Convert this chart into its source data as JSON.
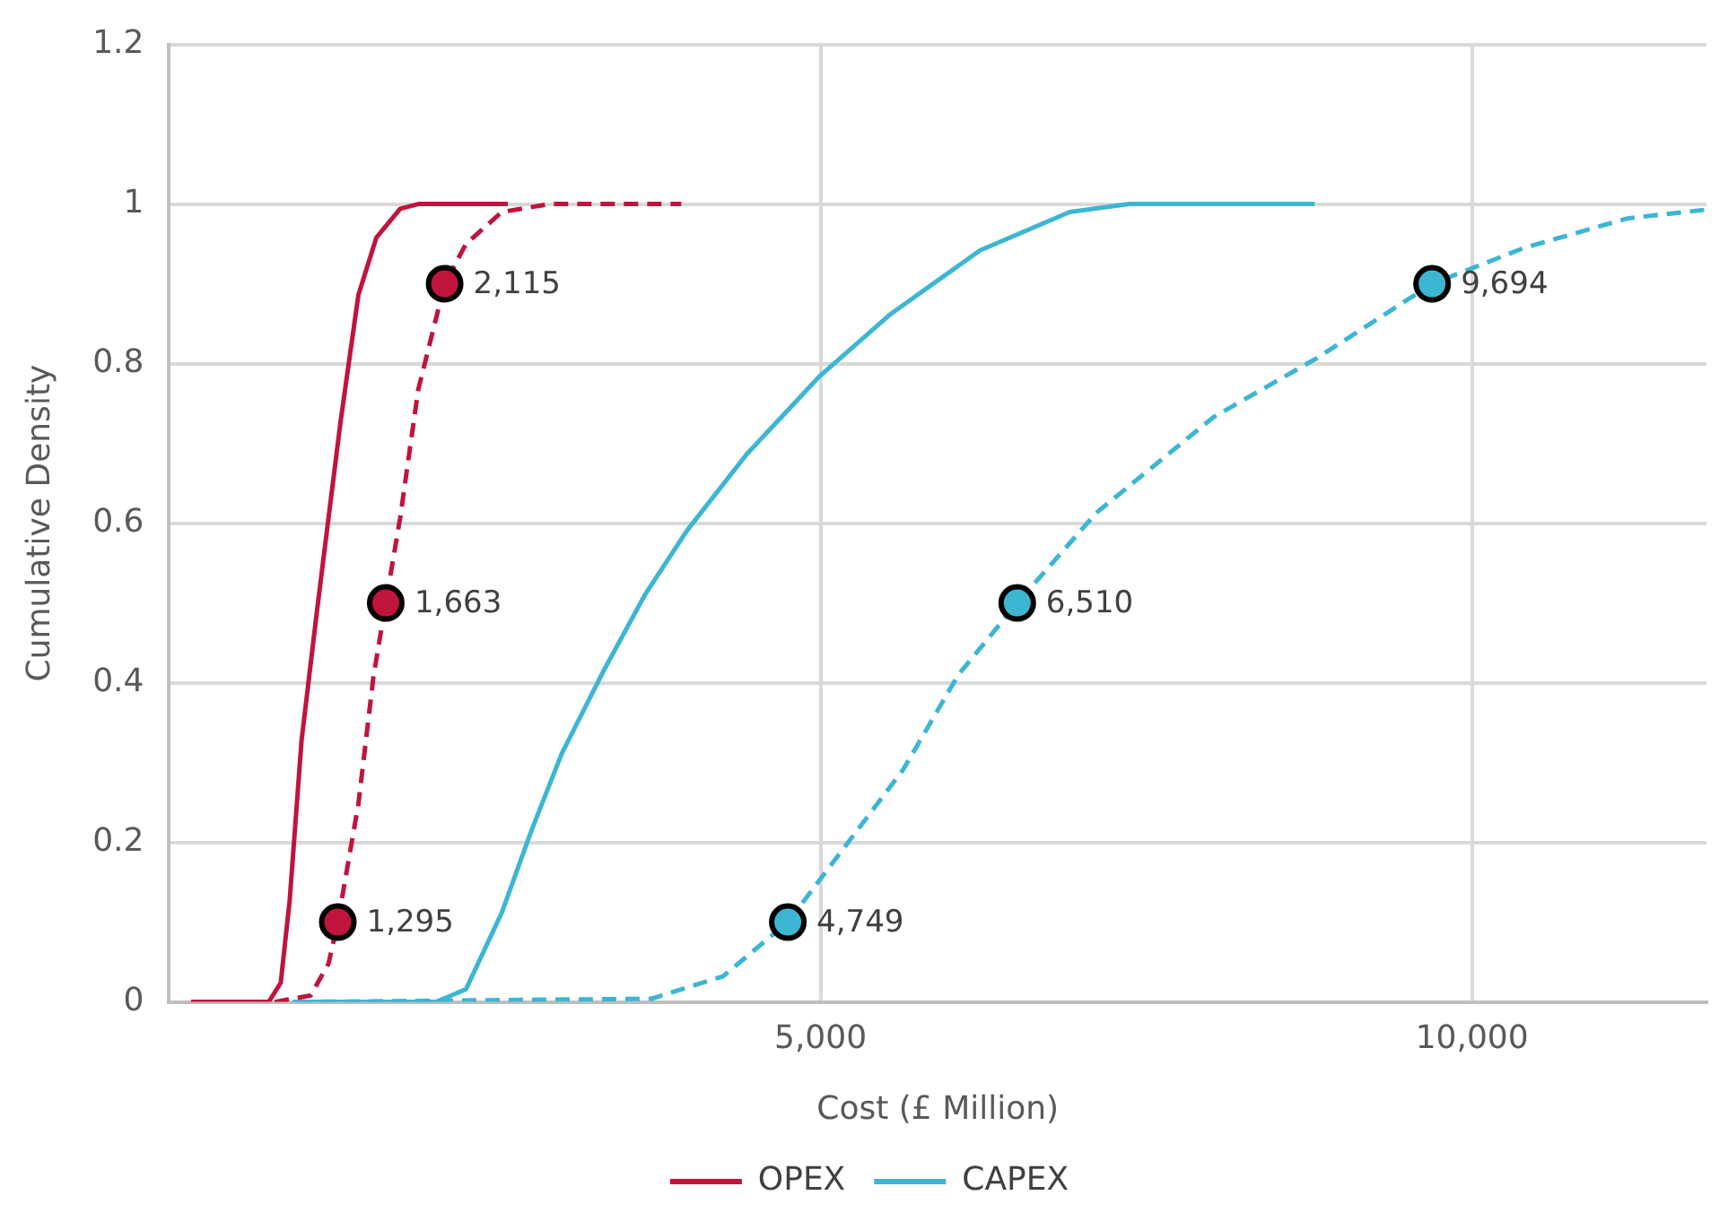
{
  "chart_data": {
    "type": "line",
    "xlabel": "Cost (£ Million)",
    "ylabel": "Cumulative Density",
    "xlim": [
      0,
      11800
    ],
    "xticks": [
      {
        "value": 0,
        "label": null
      },
      {
        "value": 5000,
        "label": "5,000"
      },
      {
        "value": 10000,
        "label": "10,000"
      }
    ],
    "ylim": [
      0,
      1.2
    ],
    "yticks": [
      0,
      0.2,
      0.4,
      0.6,
      0.8,
      1,
      1.2
    ],
    "grid": true,
    "legend": "bottom",
    "annotations": [
      {
        "text": "1,295",
        "x": 1295,
        "y": 0.1
      },
      {
        "text": "1,663",
        "x": 1663,
        "y": 0.5
      },
      {
        "text": "2,115",
        "x": 2115,
        "y": 0.9
      },
      {
        "text": "4,749",
        "x": 4749,
        "y": 0.1
      },
      {
        "text": "6,510",
        "x": 6510,
        "y": 0.5
      },
      {
        "text": "9,694",
        "x": 9694,
        "y": 0.9
      }
    ],
    "series": [
      {
        "name": "OPEX",
        "color": "#c0143c",
        "marker": "none",
        "line_style": "solid",
        "x": [
          169,
          765,
          857,
          926,
          1017,
          1133,
          1224,
          1316,
          1453,
          1591,
          1774,
          1912,
          2600
        ],
        "values": [
          0,
          0,
          0.024,
          0.128,
          0.328,
          0.487,
          0.607,
          0.727,
          0.886,
          0.958,
          0.994,
          1,
          1
        ]
      },
      {
        "color": "#c0143c",
        "marker": "none",
        "line_style": "dashed",
        "x": [
          811,
          1086,
          1224,
          1295,
          1453,
          1568,
          1663,
          1774,
          1912,
          2115,
          2279,
          2554,
          2922,
          3931
        ],
        "values": [
          0,
          0.008,
          0.048,
          0.1,
          0.248,
          0.407,
          0.5,
          0.607,
          0.767,
          0.9,
          0.95,
          0.99,
          1,
          1
        ]
      },
      {
        "name": "CAPEX",
        "color": "#3cb6d2",
        "marker": "none",
        "line_style": "solid",
        "x": [
          949,
          2049,
          2279,
          2554,
          2784,
          3013,
          3335,
          3655,
          3976,
          4436,
          4986,
          5537,
          6225,
          6913,
          7371,
          8793
        ],
        "values": [
          0,
          0,
          0.016,
          0.112,
          0.216,
          0.311,
          0.415,
          0.511,
          0.591,
          0.687,
          0.783,
          0.862,
          0.942,
          0.99,
          1,
          1
        ]
      },
      {
        "color": "#3cb6d2",
        "marker": "none",
        "line_style": "dashed",
        "x": [
          995,
          3701,
          4251,
          4749,
          5634,
          6058,
          6510,
          7117,
          8017,
          8811,
          9694,
          10399,
          11193,
          11800
        ],
        "values": [
          0,
          0.004,
          0.032,
          0.1,
          0.291,
          0.41,
          0.5,
          0.613,
          0.733,
          0.807,
          0.9,
          0.945,
          0.982,
          0.993
        ]
      },
      {
        "type": "scatter",
        "marker": "circle",
        "color": "#c0143c",
        "x": [
          1295,
          1663,
          2115
        ],
        "values": [
          0.1,
          0.5,
          0.9
        ]
      },
      {
        "type": "scatter",
        "marker": "circle",
        "color": "#3cb6d2",
        "x": [
          4749,
          6510,
          9694
        ],
        "values": [
          0.1,
          0.5,
          0.9
        ]
      }
    ]
  }
}
